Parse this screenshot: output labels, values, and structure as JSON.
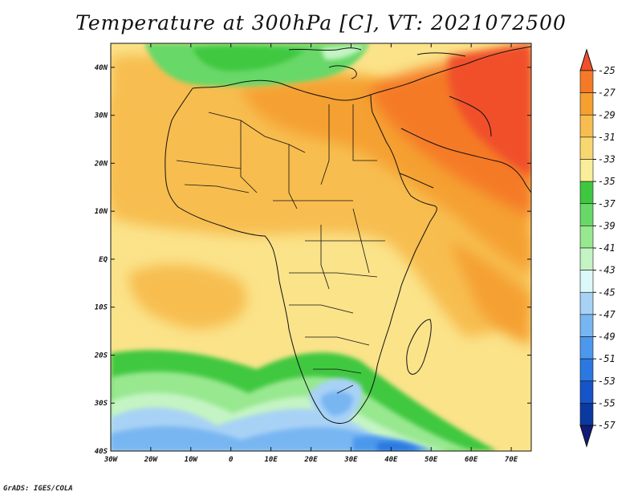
{
  "title": "Temperature at 300hPa [C], VT: 2021072500",
  "credit": "GrADS: IGES/COLA",
  "map": {
    "lon_labels": [
      "30W",
      "20W",
      "10W",
      "0",
      "10E",
      "20E",
      "30E",
      "40E",
      "50E",
      "60E",
      "70E"
    ],
    "lat_labels": [
      "40N",
      "30N",
      "20N",
      "10N",
      "EQ",
      "10S",
      "20S",
      "30S",
      "40S"
    ],
    "lon_range": [
      -30,
      75
    ],
    "lat_range": [
      -40,
      45
    ]
  },
  "colorbar": {
    "labels": [
      "-25",
      "-27",
      "-29",
      "-31",
      "-33",
      "-35",
      "-37",
      "-39",
      "-41",
      "-43",
      "-45",
      "-47",
      "-49",
      "-51",
      "-53",
      "-55",
      "-57"
    ],
    "colors": [
      "#f0502a",
      "#f57a28",
      "#f5a030",
      "#f7bd50",
      "#f9d770",
      "#fbee9a",
      "#3fc83f",
      "#68d868",
      "#98e890",
      "#c4f4c4",
      "#ddf8f8",
      "#a8d2f5",
      "#78b6f2",
      "#4c98ec",
      "#2a78e0",
      "#1555c8",
      "#0a3aa0",
      "#101c78"
    ]
  }
}
